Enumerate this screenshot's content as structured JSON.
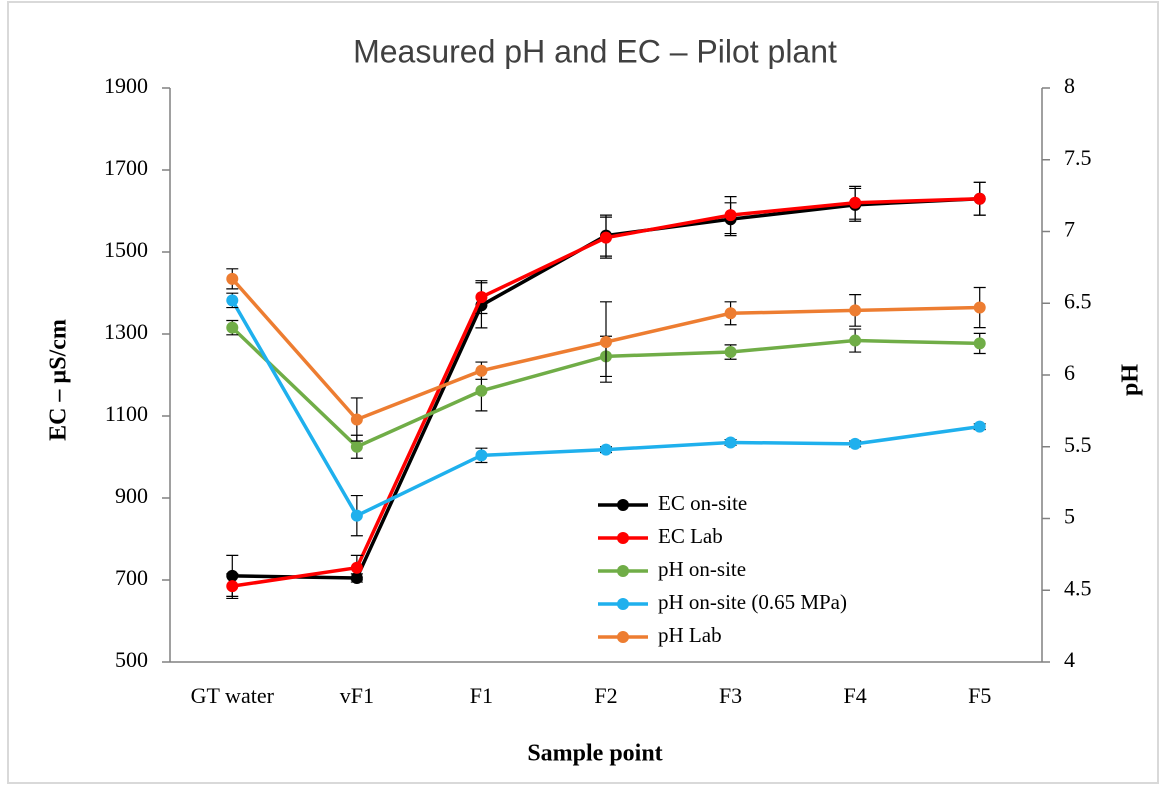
{
  "chart_data": {
    "type": "line",
    "title": "Measured pH and EC – Pilot plant",
    "x_label": "Sample point",
    "y_label": "EC – µS/cm",
    "y2_label": "pH",
    "categories": [
      "GT water",
      "vF1",
      "F1",
      "F2",
      "F3",
      "F4",
      "F5"
    ],
    "ylim": [
      500,
      1900
    ],
    "yticks": [
      500,
      700,
      900,
      1100,
      1300,
      1500,
      1700,
      1900
    ],
    "y2lim": [
      4,
      8
    ],
    "y2ticks": [
      4,
      4.5,
      5,
      5.5,
      6,
      6.5,
      7,
      7.5,
      8
    ],
    "series": [
      {
        "name": "EC on-site",
        "color": "#000000",
        "values": [
          710,
          705,
          1370,
          1540,
          1580,
          1615,
          1630
        ],
        "errors": [
          50,
          10,
          55,
          50,
          40,
          40,
          40
        ]
      },
      {
        "name": "EC Lab",
        "color": "#ff0000",
        "values": [
          685,
          730,
          1390,
          1535,
          1590,
          1620,
          1630
        ],
        "errors": [
          30,
          30,
          40,
          50,
          45,
          40,
          40
        ]
      },
      {
        "name": "pH on-site",
        "color": "#70ad47",
        "axis": "y2",
        "values": [
          6.33,
          5.5,
          5.89,
          6.13,
          6.16,
          6.24,
          6.22
        ],
        "errors": [
          0.05,
          0.08,
          0.14,
          0.14,
          0.05,
          0.08,
          0.07
        ]
      },
      {
        "name": "pH on-site (0.65 MPa)",
        "color": "#1fb0ed",
        "axis": "y2",
        "values": [
          6.52,
          5.02,
          5.44,
          5.48,
          5.53,
          5.52,
          5.64
        ],
        "errors": [
          0.05,
          0.14,
          0.05,
          0.02,
          0.02,
          0.02,
          0.02
        ]
      },
      {
        "name": "pH Lab",
        "color": "#ed7d31",
        "axis": "y2",
        "values": [
          6.67,
          5.69,
          6.03,
          6.23,
          6.43,
          6.45,
          6.47
        ],
        "errors": [
          0.07,
          0.15,
          0.06,
          0.28,
          0.08,
          0.11,
          0.14
        ]
      }
    ]
  }
}
